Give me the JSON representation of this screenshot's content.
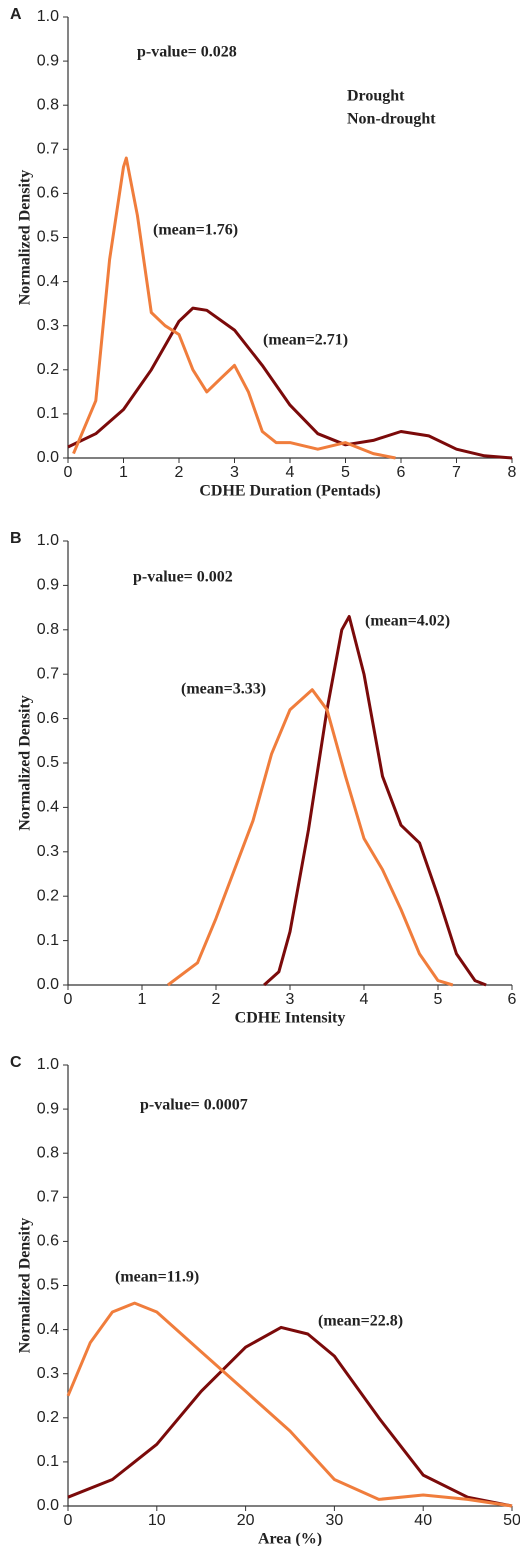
{
  "chart_data": [
    {
      "type": "line",
      "panel_label": "A",
      "annotation": "p-value= 0.028",
      "x_label": "CDHE Duration (Pentads)",
      "y_label": "Normalized Density",
      "legend": "upper right",
      "xlim": [
        0,
        8
      ],
      "xticks": [
        0,
        1,
        2,
        3,
        4,
        5,
        6,
        7,
        8
      ],
      "ylim": [
        0,
        1
      ],
      "yticks": [
        {
          "value": 0,
          "label": "0.0"
        },
        0.1,
        0.2,
        0.3,
        0.4,
        0.5,
        0.6,
        0.7,
        0.8,
        0.9,
        {
          "value": 1,
          "label": "1.0"
        }
      ],
      "series": [
        {
          "name": "Drought",
          "color": "#7b0a0a",
          "mean_label": "(mean=2.71)",
          "x": [
            0,
            0.5,
            1,
            1.5,
            2,
            2.25,
            2.5,
            3,
            3.5,
            4,
            4.5,
            5,
            5.5,
            6,
            6.5,
            7,
            7.5,
            8
          ],
          "values": [
            0.025,
            0.055,
            0.11,
            0.2,
            0.31,
            0.34,
            0.335,
            0.29,
            0.21,
            0.12,
            0.055,
            0.03,
            0.04,
            0.06,
            0.05,
            0.02,
            0.005,
            0
          ]
        },
        {
          "name": "Non-drought",
          "color": "#f07d3c",
          "mean_label": "(mean=1.76)",
          "x": [
            0.1,
            0.5,
            0.75,
            1,
            1.05,
            1.25,
            1.5,
            1.75,
            2,
            2.25,
            2.5,
            2.75,
            3,
            3.25,
            3.5,
            3.75,
            4,
            4.5,
            5,
            5.5,
            5.9
          ],
          "values": [
            0.01,
            0.13,
            0.45,
            0.66,
            0.68,
            0.55,
            0.33,
            0.3,
            0.28,
            0.2,
            0.15,
            0.18,
            0.21,
            0.15,
            0.06,
            0.035,
            0.035,
            0.02,
            0.035,
            0.01,
            0
          ]
        }
      ]
    },
    {
      "type": "line",
      "panel_label": "B",
      "annotation": "p-value= 0.002",
      "x_label": "CDHE Intensity",
      "y_label": "Normalized Density",
      "xlim": [
        0,
        6
      ],
      "xticks": [
        0,
        1,
        2,
        3,
        4,
        5,
        6
      ],
      "ylim": [
        0,
        1
      ],
      "yticks": [
        {
          "value": 0,
          "label": "0.0"
        },
        0.1,
        0.2,
        0.3,
        0.4,
        0.5,
        0.6,
        0.7,
        0.8,
        0.9,
        {
          "value": 1,
          "label": "1.0"
        }
      ],
      "series": [
        {
          "name": "Drought",
          "color": "#7b0a0a",
          "mean_label": "(mean=4.02)",
          "x": [
            2.65,
            2.85,
            3,
            3.25,
            3.5,
            3.7,
            3.8,
            4,
            4.25,
            4.5,
            4.75,
            5,
            5.25,
            5.5,
            5.65
          ],
          "values": [
            0,
            0.03,
            0.12,
            0.35,
            0.62,
            0.8,
            0.83,
            0.7,
            0.47,
            0.36,
            0.32,
            0.2,
            0.07,
            0.01,
            0
          ]
        },
        {
          "name": "Non-drought",
          "color": "#f07d3c",
          "mean_label": "(mean=3.33)",
          "x": [
            1.35,
            1.75,
            2,
            2.5,
            2.75,
            3,
            3.3,
            3.5,
            3.75,
            4,
            4.25,
            4.5,
            4.75,
            5,
            5.2
          ],
          "values": [
            0,
            0.05,
            0.15,
            0.37,
            0.52,
            0.62,
            0.665,
            0.62,
            0.47,
            0.33,
            0.26,
            0.17,
            0.07,
            0.01,
            0
          ]
        }
      ]
    },
    {
      "type": "line",
      "panel_label": "C",
      "annotation": "p-value= 0.0007",
      "x_label": "Area (%)",
      "y_label": "Normalized Density",
      "xlim": [
        0,
        50
      ],
      "xticks": [
        0,
        10,
        20,
        30,
        40,
        50
      ],
      "ylim": [
        0,
        1
      ],
      "yticks": [
        {
          "value": 0,
          "label": "0.0"
        },
        0.1,
        0.2,
        0.3,
        0.4,
        0.5,
        0.6,
        0.7,
        0.8,
        0.9,
        {
          "value": 1,
          "label": "1.0"
        }
      ],
      "series": [
        {
          "name": "Drought",
          "color": "#7b0a0a",
          "mean_label": "(mean=22.8)",
          "x": [
            0,
            5,
            10,
            15,
            20,
            24,
            27,
            30,
            35,
            40,
            45,
            50
          ],
          "values": [
            0.02,
            0.06,
            0.14,
            0.26,
            0.36,
            0.405,
            0.39,
            0.34,
            0.2,
            0.07,
            0.02,
            0
          ]
        },
        {
          "name": "Non-drought",
          "color": "#f07d3c",
          "mean_label": "(mean=11.9)",
          "x": [
            0,
            2.5,
            5,
            7.5,
            10,
            15,
            20,
            25,
            30,
            35,
            40,
            45,
            50
          ],
          "values": [
            0.25,
            0.37,
            0.44,
            0.46,
            0.44,
            0.35,
            0.26,
            0.17,
            0.06,
            0.015,
            0.025,
            0.015,
            0
          ]
        }
      ]
    }
  ]
}
